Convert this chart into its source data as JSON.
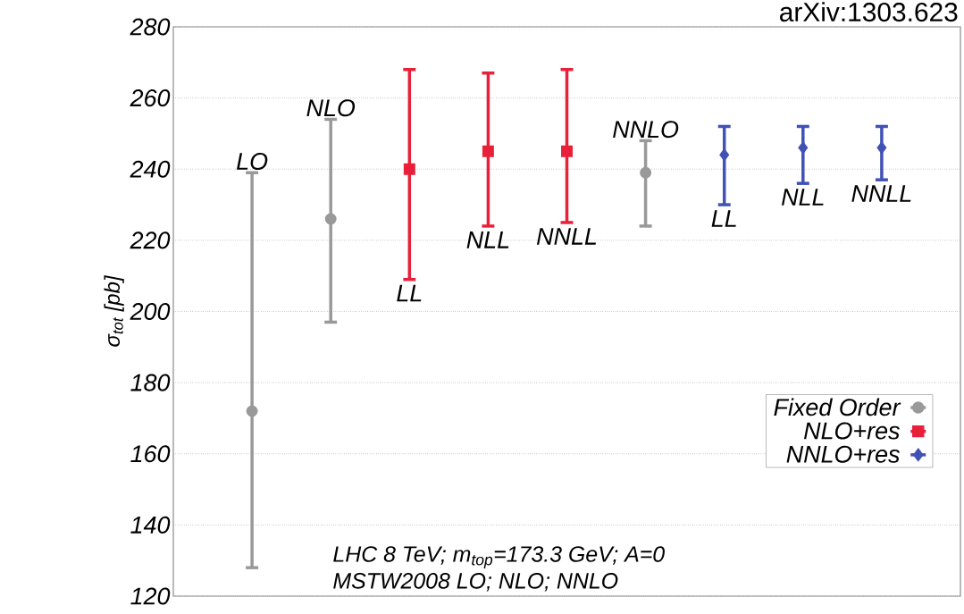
{
  "chart_data": {
    "type": "scatter",
    "ylabel": "σ$_{tot}$ [pb]",
    "categories": [
      "LO",
      "NLO",
      "LL",
      "NLL",
      "NNLL",
      "NNLO",
      "LL",
      "NLL",
      "NNLL"
    ],
    "series": [
      {
        "name": "Fixed Order",
        "color": "#999999",
        "marker": "circle",
        "values": [
          172,
          226,
          null,
          null,
          null,
          239,
          null,
          null,
          null
        ],
        "errors": [
          [
            128,
            239
          ],
          [
            197,
            254
          ],
          null,
          null,
          null,
          [
            224,
            248
          ],
          null,
          null,
          null
        ]
      },
      {
        "name": "NLO+res",
        "color": "#e8203a",
        "marker": "square",
        "values": [
          null,
          null,
          240,
          245,
          245,
          null,
          null,
          null,
          null
        ],
        "errors": [
          null,
          null,
          [
            209,
            268
          ],
          [
            224,
            267
          ],
          [
            225,
            268
          ],
          null,
          null,
          null,
          null
        ]
      },
      {
        "name": "NNLO+res",
        "color": "#4052b5",
        "marker": "diamond",
        "values": [
          null,
          null,
          null,
          null,
          null,
          null,
          244,
          246,
          246
        ],
        "errors": [
          null,
          null,
          null,
          null,
          null,
          null,
          [
            230,
            252
          ],
          [
            236,
            252
          ],
          [
            237,
            252
          ]
        ]
      }
    ],
    "ylim": [
      120,
      280
    ],
    "yticks": [
      120,
      140,
      160,
      180,
      200,
      220,
      240,
      260,
      280
    ],
    "grid": "y",
    "legend": "right",
    "tick_labels": "y",
    "annotations": [
      "LHC 8 TeV; m$_{top}$=173.3 GeV; A=0",
      "MSTW2008 LO; NLO; NNLO",
      "arXiv:1303.623"
    ]
  }
}
